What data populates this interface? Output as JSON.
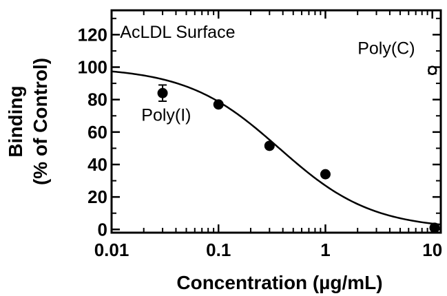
{
  "chart_data": {
    "type": "scatter",
    "xlabel": "Concentration (µg/mL)",
    "ylabel_lines": [
      "Binding",
      "(% of Control)"
    ],
    "x_scale": "log",
    "xlim": [
      0.01,
      12
    ],
    "ylim": [
      -2,
      135
    ],
    "x_ticks": [
      {
        "value": 0.01,
        "label": "0.01"
      },
      {
        "value": 0.1,
        "label": "0.1"
      },
      {
        "value": 1,
        "label": "1"
      },
      {
        "value": 10,
        "label": "10"
      }
    ],
    "y_ticks": [
      {
        "value": 0,
        "label": "0"
      },
      {
        "value": 20,
        "label": "20"
      },
      {
        "value": 40,
        "label": "40"
      },
      {
        "value": 60,
        "label": "60"
      },
      {
        "value": 80,
        "label": "80"
      },
      {
        "value": 100,
        "label": "100"
      },
      {
        "value": 120,
        "label": "120"
      }
    ],
    "grid": false,
    "annotations": [
      {
        "text": "AcLDL Surface",
        "x": 0.012,
        "y": 118
      },
      {
        "text": "Poly(I)",
        "x": 0.019,
        "y": 67
      },
      {
        "text": "Poly(C)",
        "x": 2.0,
        "y": 108
      }
    ],
    "series": [
      {
        "name": "Poly(I)",
        "marker": "filled-circle",
        "points": [
          {
            "x": 0.03,
            "y": 84,
            "err": 5
          },
          {
            "x": 0.1,
            "y": 77
          },
          {
            "x": 0.3,
            "y": 51.5
          },
          {
            "x": 1.0,
            "y": 34
          },
          {
            "x": 10.5,
            "y": 1
          }
        ]
      },
      {
        "name": "Poly(C)",
        "marker": "open-circle",
        "points": [
          {
            "x": 10.0,
            "y": 98,
            "err": 2
          }
        ]
      }
    ],
    "fit_curve": {
      "model": "logistic",
      "top": 100,
      "bottom": 0,
      "ic50": 0.37,
      "hill": 1.0
    }
  }
}
